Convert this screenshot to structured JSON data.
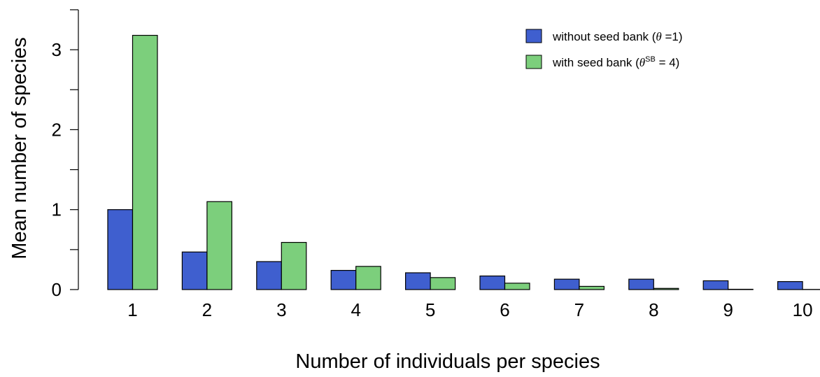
{
  "chart_data": {
    "type": "bar",
    "xlabel": "Number of individuals per species",
    "ylabel": "Mean number of species",
    "categories": [
      "1",
      "2",
      "3",
      "4",
      "5",
      "6",
      "7",
      "8",
      "9",
      "10"
    ],
    "ylim": [
      0,
      3.5
    ],
    "yticks": [
      "0",
      "1",
      "2",
      "3"
    ],
    "legend_position": "top-right",
    "grid": false,
    "series": [
      {
        "name": "without seed bank (θ =1)",
        "color": "#3f5fcf",
        "values": [
          1.0,
          0.47,
          0.35,
          0.24,
          0.21,
          0.17,
          0.13,
          0.13,
          0.11,
          0.1
        ]
      },
      {
        "name": "with seed bank (θ^SB = 4)",
        "color": "#7ccf7c",
        "values": [
          3.18,
          1.1,
          0.59,
          0.29,
          0.15,
          0.08,
          0.04,
          0.015,
          0.004,
          0.002
        ]
      }
    ],
    "legend": {
      "without": {
        "pre": "without seed bank (",
        "theta": "θ",
        "post": " =1)"
      },
      "with": {
        "pre": "with seed bank (",
        "theta": "θ",
        "sup": "SB",
        "post": " = 4)"
      }
    }
  }
}
